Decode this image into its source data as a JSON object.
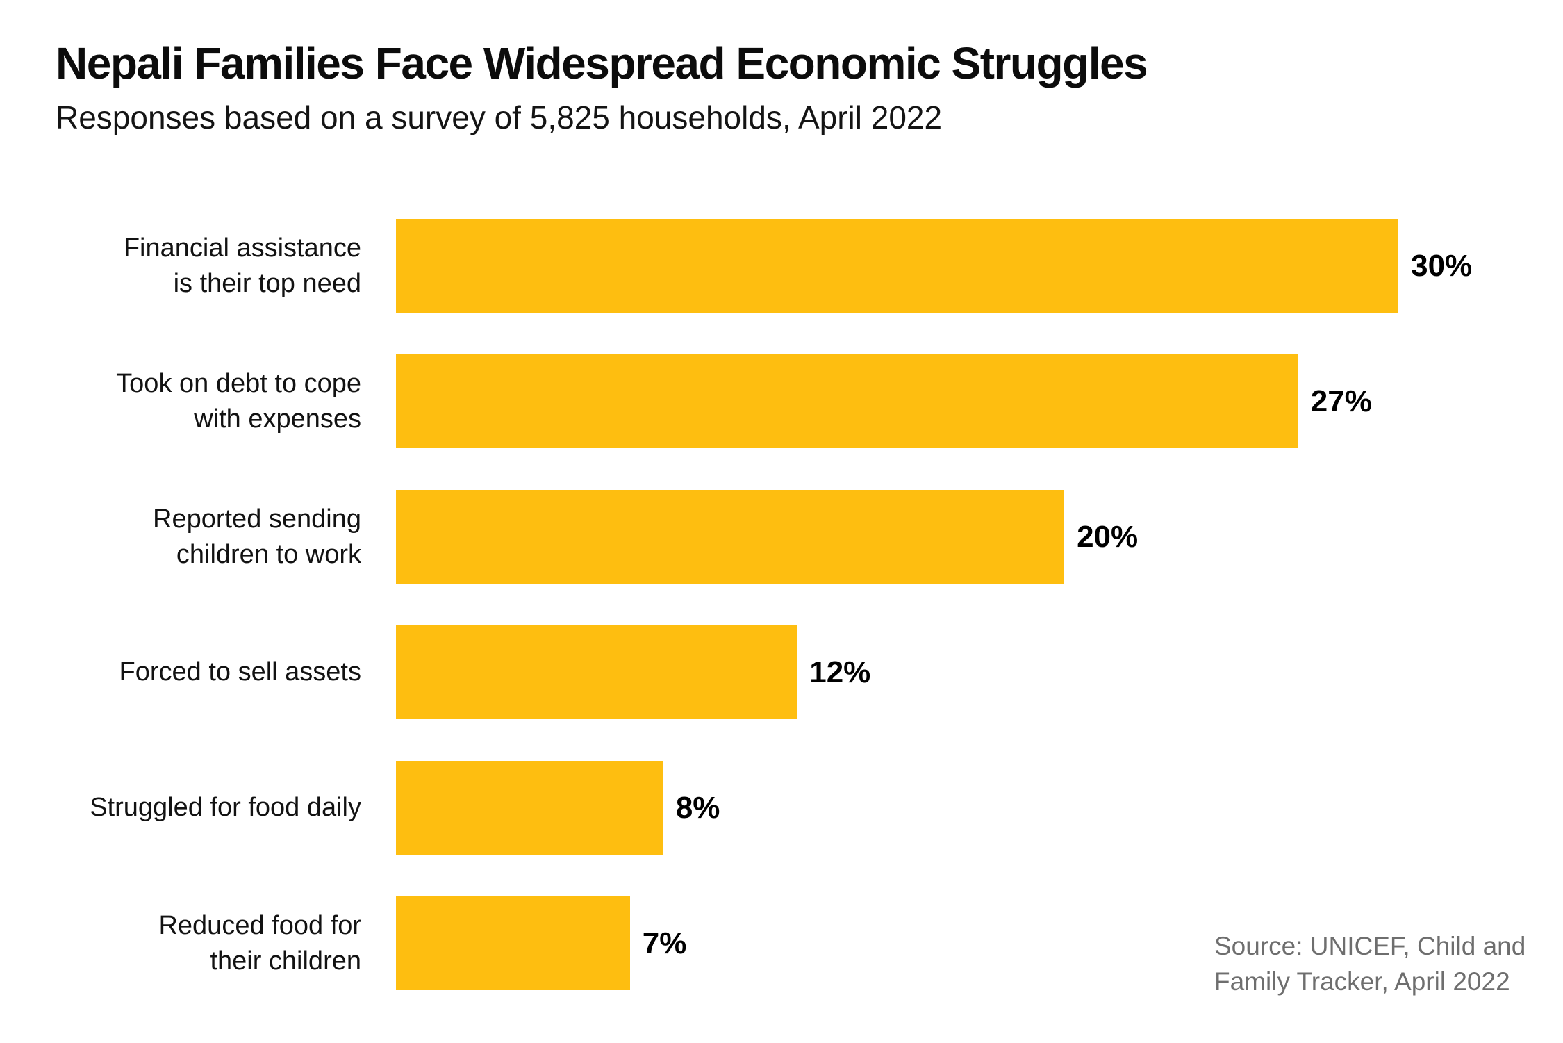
{
  "header": {
    "title": "Nepali Families Face Widespread Economic Struggles",
    "subtitle": "Responses based on a survey of 5,825 households, April 2022"
  },
  "chart_data": {
    "type": "bar",
    "orientation": "horizontal",
    "title": "Nepali Families Face Widespread Economic Struggles",
    "subtitle": "Responses based on a survey of 5,825 households, April 2022",
    "categories": [
      "Financial assistance is their top need",
      "Took on debt to cope with expenses",
      "Reported sending children to work",
      "Forced to sell assets",
      "Struggled for food daily",
      "Reduced food for their children"
    ],
    "label_lines": [
      "Financial assistance\nis their top need",
      "Took on debt to cope\nwith expenses",
      "Reported sending\nchildren to work",
      "Forced to sell assets",
      "Struggled for food daily",
      "Reduced food for\ntheir children"
    ],
    "values": [
      30,
      27,
      20,
      12,
      8,
      7
    ],
    "value_labels": [
      "30%",
      "27%",
      "20%",
      "12%",
      "8%",
      "7%"
    ],
    "value_suffix": "%",
    "xlabel": "",
    "ylabel": "",
    "xlim": [
      0,
      30
    ],
    "grid": false,
    "legend": false,
    "bar_color": "#FEBE10",
    "value_label_color": "#000000",
    "category_label_color": "#121212"
  },
  "source": {
    "line1": "Source: UNICEF, Child and",
    "line2": "Family Tracker, April 2022",
    "color": "#6E6E6E"
  }
}
